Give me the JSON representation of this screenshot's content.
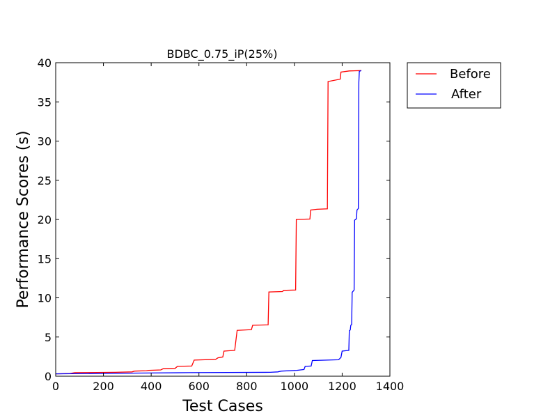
{
  "chart_data": {
    "type": "line",
    "title": "BDBC_0.75_iP(25%)",
    "xlabel": "Test Cases",
    "ylabel": "Performance Scores (s)",
    "xlim": [
      0,
      1400
    ],
    "ylim": [
      0,
      40
    ],
    "xticks": [
      "0",
      "200",
      "400",
      "600",
      "800",
      "1000",
      "1200",
      "1400"
    ],
    "yticks": [
      "0",
      "5",
      "10",
      "15",
      "20",
      "25",
      "30",
      "35",
      "40"
    ],
    "grid": false,
    "legend": "outside-top-right",
    "series": [
      {
        "name": "Before",
        "color": "#ff0000",
        "points": [
          [
            0,
            0.3
          ],
          [
            60,
            0.35
          ],
          [
            80,
            0.45
          ],
          [
            250,
            0.5
          ],
          [
            320,
            0.55
          ],
          [
            330,
            0.65
          ],
          [
            380,
            0.7
          ],
          [
            390,
            0.75
          ],
          [
            440,
            0.8
          ],
          [
            450,
            0.95
          ],
          [
            500,
            1.0
          ],
          [
            510,
            1.25
          ],
          [
            570,
            1.3
          ],
          [
            580,
            2.05
          ],
          [
            670,
            2.15
          ],
          [
            680,
            2.35
          ],
          [
            700,
            2.45
          ],
          [
            705,
            3.2
          ],
          [
            750,
            3.3
          ],
          [
            760,
            5.85
          ],
          [
            820,
            5.95
          ],
          [
            825,
            6.5
          ],
          [
            890,
            6.55
          ],
          [
            893,
            10.75
          ],
          [
            950,
            10.8
          ],
          [
            955,
            10.95
          ],
          [
            1005,
            11.0
          ],
          [
            1008,
            20.0
          ],
          [
            1065,
            20.05
          ],
          [
            1068,
            21.2
          ],
          [
            1095,
            21.3
          ],
          [
            1138,
            21.35
          ],
          [
            1141,
            37.6
          ],
          [
            1192,
            37.9
          ],
          [
            1195,
            38.8
          ],
          [
            1230,
            38.95
          ],
          [
            1280,
            39.0
          ]
        ]
      },
      {
        "name": "After",
        "color": "#0000ff",
        "points": [
          [
            0,
            0.3
          ],
          [
            350,
            0.4
          ],
          [
            560,
            0.45
          ],
          [
            900,
            0.5
          ],
          [
            930,
            0.55
          ],
          [
            945,
            0.65
          ],
          [
            1010,
            0.75
          ],
          [
            1040,
            0.85
          ],
          [
            1045,
            1.25
          ],
          [
            1070,
            1.3
          ],
          [
            1075,
            2.0
          ],
          [
            1185,
            2.1
          ],
          [
            1195,
            2.4
          ],
          [
            1200,
            3.2
          ],
          [
            1228,
            3.3
          ],
          [
            1230,
            5.8
          ],
          [
            1234,
            5.9
          ],
          [
            1236,
            6.5
          ],
          [
            1240,
            6.6
          ],
          [
            1242,
            10.7
          ],
          [
            1250,
            11.0
          ],
          [
            1252,
            19.9
          ],
          [
            1260,
            20.1
          ],
          [
            1262,
            21.2
          ],
          [
            1268,
            21.4
          ],
          [
            1270,
            37.5
          ],
          [
            1272,
            38.9
          ],
          [
            1280,
            39.0
          ]
        ]
      }
    ]
  }
}
